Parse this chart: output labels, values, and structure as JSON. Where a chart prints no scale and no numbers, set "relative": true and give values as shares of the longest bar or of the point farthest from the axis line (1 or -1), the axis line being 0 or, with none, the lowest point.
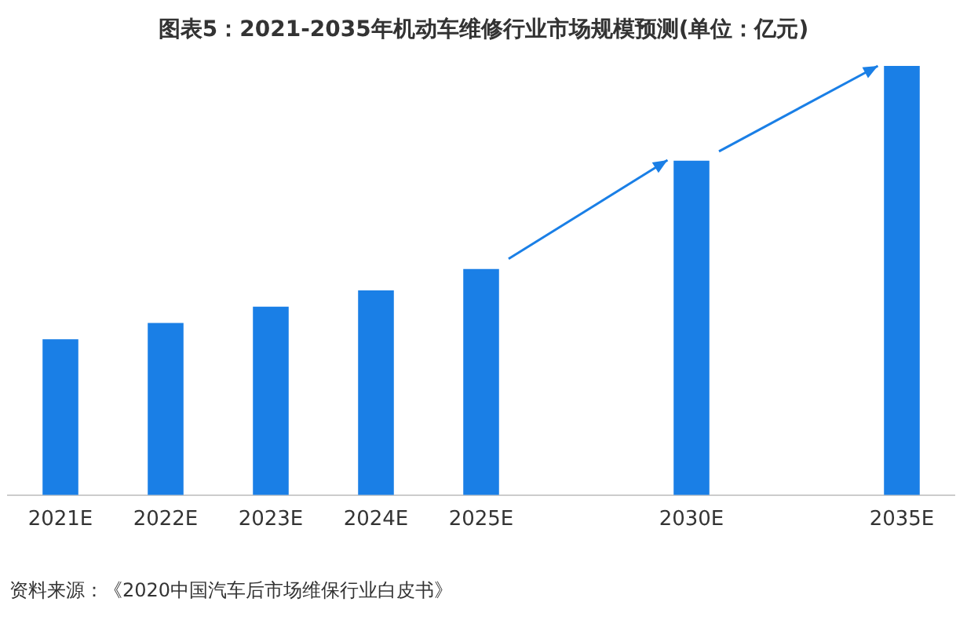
{
  "chart_data": {
    "type": "bar",
    "title": "图表5：2021-2035年机动车维修行业市场规模预测(单位：亿元)",
    "categories": [
      "2021E",
      "2022E",
      "2023E",
      "2024E",
      "2025E",
      null,
      "2030E",
      null,
      "2035E"
    ],
    "values": [
      0.363,
      0.401,
      0.439,
      0.477,
      0.527,
      null,
      0.779,
      null,
      1
    ],
    "color": "#1a7fe6",
    "relative": true,
    "grid": false,
    "legend": false,
    "annotations": [
      "资料来源：《2020中国汽车后市场维保行业白皮书》"
    ]
  }
}
